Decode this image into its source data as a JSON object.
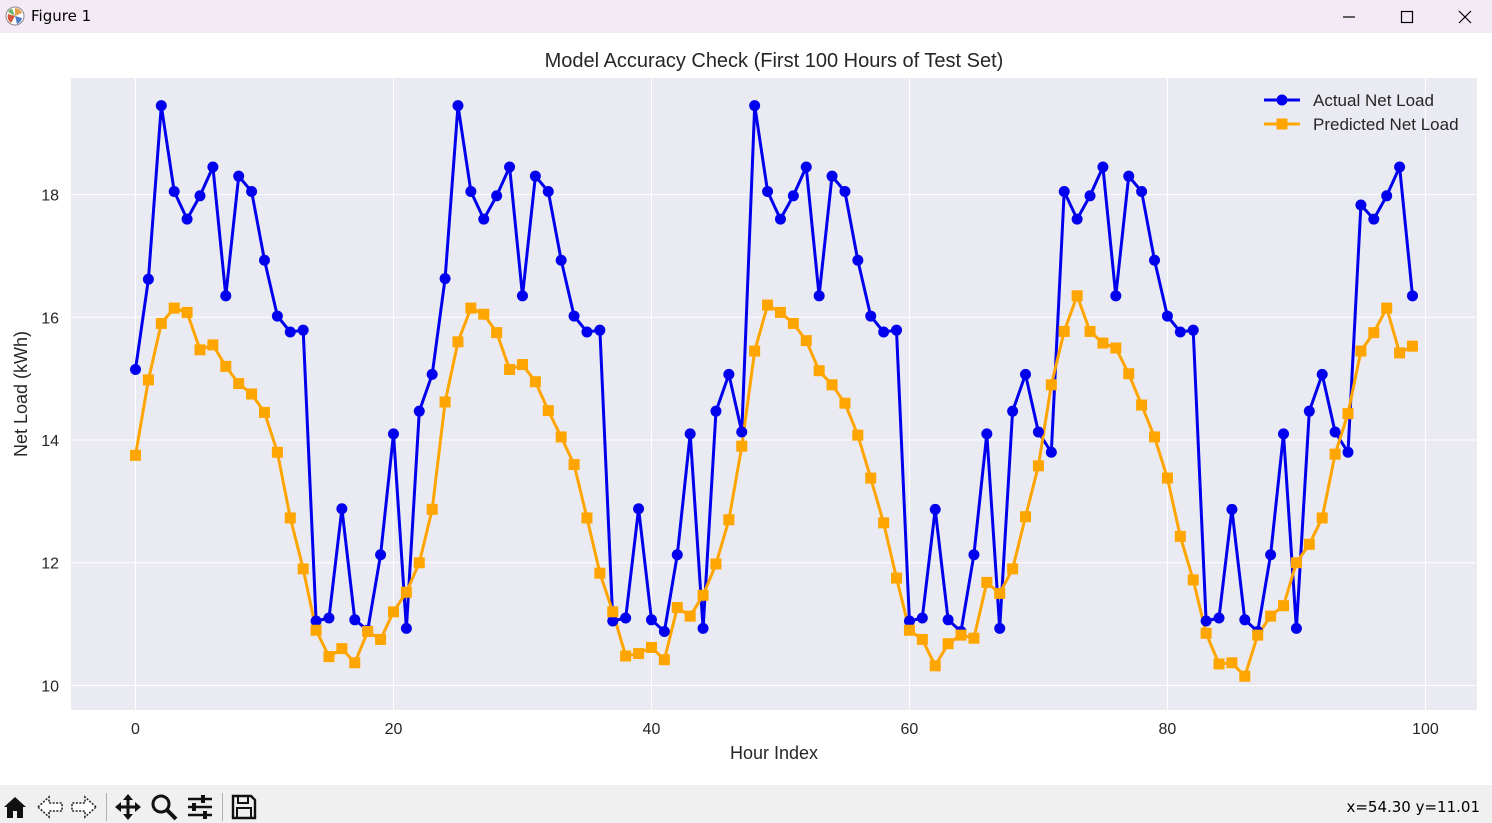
{
  "window": {
    "title": "Figure 1",
    "icon": "matplotlib-logo-icon",
    "controls": [
      "minimize-icon",
      "maximize-icon",
      "close-icon"
    ]
  },
  "toolbar": {
    "tools": [
      "home-icon",
      "back-arrow-icon",
      "forward-arrow-icon",
      "pan-icon",
      "zoom-icon",
      "configure-subplots-icon",
      "save-icon"
    ],
    "coords": "x=54.30 y=11.01"
  },
  "chart_data": {
    "type": "line",
    "title": "Model Accuracy Check (First 100 Hours of Test Set)",
    "xlabel": "Hour Index",
    "ylabel": "Net Load (kWh)",
    "xlim": [
      -5,
      104
    ],
    "ylim": [
      9.6,
      19.9
    ],
    "xticks": [
      0,
      20,
      40,
      60,
      80,
      100
    ],
    "yticks": [
      10,
      12,
      14,
      16,
      18
    ],
    "grid": true,
    "background": "#eaeaf2",
    "legend_position": "upper right",
    "series": [
      {
        "name": "Actual Net Load",
        "color": "#0000ee",
        "marker": "circle",
        "x": [
          0,
          1,
          2,
          3,
          4,
          5,
          6,
          7,
          8,
          9,
          10,
          11,
          12,
          13,
          14,
          15,
          16,
          17,
          18,
          19,
          20,
          21,
          22,
          23,
          24,
          25,
          26,
          27,
          28,
          29,
          30,
          31,
          32,
          33,
          34,
          35,
          36,
          37,
          38,
          39,
          40,
          41,
          42,
          43,
          44,
          45,
          46,
          47,
          48,
          49,
          50,
          51,
          52,
          53,
          54,
          55,
          56,
          57,
          58,
          59,
          60,
          61,
          62,
          63,
          64,
          65,
          66,
          67,
          68,
          69,
          70,
          71,
          72,
          73,
          74,
          75,
          76,
          77,
          78,
          79,
          80,
          81,
          82,
          83,
          84,
          85,
          86,
          87,
          88,
          89,
          90,
          91,
          92,
          93,
          94,
          95,
          96,
          97,
          98,
          99
        ],
        "values": [
          15.15,
          16.62,
          19.45,
          18.05,
          17.6,
          17.98,
          18.45,
          16.35,
          18.3,
          18.05,
          16.93,
          16.02,
          15.76,
          15.79,
          11.05,
          11.1,
          12.88,
          11.07,
          10.9,
          12.13,
          14.1,
          10.93,
          14.47,
          15.07,
          16.63,
          19.45,
          18.05,
          17.6,
          17.98,
          18.45,
          16.35,
          18.3,
          18.05,
          16.93,
          16.02,
          15.76,
          15.79,
          11.05,
          11.1,
          12.88,
          11.07,
          10.88,
          12.13,
          14.1,
          10.93,
          14.47,
          15.07,
          14.13,
          19.45,
          18.05,
          17.6,
          17.98,
          18.45,
          16.35,
          18.3,
          18.05,
          16.93,
          16.02,
          15.76,
          15.79,
          11.05,
          11.1,
          12.87,
          11.07,
          10.88,
          12.13,
          14.1,
          10.93,
          14.47,
          15.07,
          14.13,
          13.8,
          18.05,
          17.6,
          17.98,
          18.45,
          16.35,
          18.3,
          18.05,
          16.93,
          16.02,
          15.76,
          15.79,
          11.05,
          11.1,
          12.87,
          11.07,
          10.88,
          12.13,
          14.1,
          10.93,
          14.47,
          15.07,
          14.13,
          13.8,
          17.83,
          17.6,
          17.98,
          18.45,
          16.35
        ]
      },
      {
        "name": "Predicted Net Load",
        "color": "#ffa500",
        "marker": "square",
        "x": [
          0,
          1,
          2,
          3,
          4,
          5,
          6,
          7,
          8,
          9,
          10,
          11,
          12,
          13,
          14,
          15,
          16,
          17,
          18,
          19,
          20,
          21,
          22,
          23,
          24,
          25,
          26,
          27,
          28,
          29,
          30,
          31,
          32,
          33,
          34,
          35,
          36,
          37,
          38,
          39,
          40,
          41,
          42,
          43,
          44,
          45,
          46,
          47,
          48,
          49,
          50,
          51,
          52,
          53,
          54,
          55,
          56,
          57,
          58,
          59,
          60,
          61,
          62,
          63,
          64,
          65,
          66,
          67,
          68,
          69,
          70,
          71,
          72,
          73,
          74,
          75,
          76,
          77,
          78,
          79,
          80,
          81,
          82,
          83,
          84,
          85,
          86,
          87,
          88,
          89,
          90,
          91,
          92,
          93,
          94,
          95,
          96,
          97,
          98,
          99
        ],
        "values": [
          13.75,
          14.98,
          15.9,
          16.15,
          16.08,
          15.47,
          15.55,
          15.2,
          14.92,
          14.75,
          14.45,
          13.8,
          12.73,
          11.9,
          10.9,
          10.47,
          10.6,
          10.37,
          10.88,
          10.75,
          11.2,
          11.52,
          12.0,
          12.87,
          14.62,
          15.6,
          16.15,
          16.05,
          15.75,
          15.15,
          15.23,
          14.95,
          14.48,
          14.05,
          13.6,
          12.73,
          11.83,
          11.2,
          10.48,
          10.52,
          10.62,
          10.42,
          11.27,
          11.13,
          11.47,
          11.98,
          12.7,
          13.9,
          15.45,
          16.2,
          16.08,
          15.9,
          15.62,
          15.13,
          14.9,
          14.6,
          14.08,
          13.38,
          12.65,
          11.75,
          10.9,
          10.75,
          10.32,
          10.68,
          10.82,
          10.77,
          11.68,
          11.5,
          11.9,
          12.75,
          13.58,
          14.9,
          15.77,
          16.35,
          15.77,
          15.58,
          15.5,
          15.08,
          14.57,
          14.05,
          13.38,
          12.43,
          11.72,
          10.85,
          10.35,
          10.37,
          10.15,
          10.82,
          11.13,
          11.3,
          12.0,
          12.3,
          12.73,
          13.77,
          14.43,
          15.45,
          15.75,
          16.15,
          15.42,
          15.53
        ]
      }
    ]
  }
}
